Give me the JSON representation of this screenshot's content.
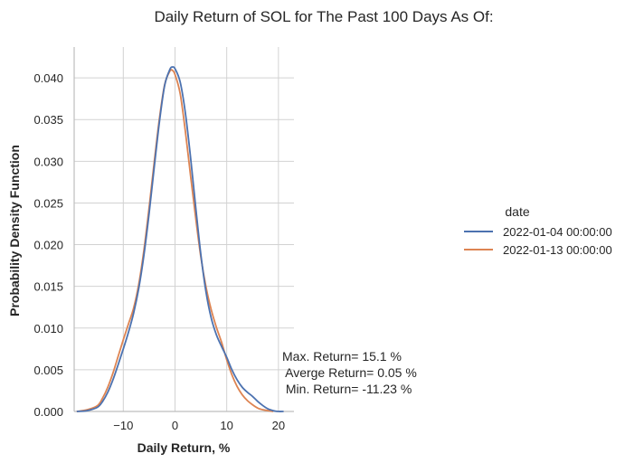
{
  "chart_data": {
    "type": "line",
    "title": "Daily Return of SOL for The Past 100 Days As Of:",
    "xlabel": "Daily Return, %",
    "ylabel": "Probability Density Function",
    "xlim": [
      -19.5,
      23
    ],
    "ylim": [
      0,
      0.0437
    ],
    "x_ticks": [
      -10,
      0,
      10,
      20
    ],
    "x_tick_labels": [
      "−10",
      "0",
      "10",
      "20"
    ],
    "y_ticks": [
      0.0,
      0.005,
      0.01,
      0.015,
      0.02,
      0.025,
      0.03,
      0.035,
      0.04
    ],
    "y_tick_labels": [
      "0.000",
      "0.005",
      "0.010",
      "0.015",
      "0.020",
      "0.025",
      "0.030",
      "0.035",
      "0.040"
    ],
    "grid": true,
    "legend": {
      "title": "date",
      "placement": "right"
    },
    "series": [
      {
        "name": "2022-01-04 00:00:00",
        "color": "#4c72b0",
        "x": [
          -19,
          -17,
          -15,
          -14,
          -13,
          -12,
          -11,
          -10,
          -9,
          -8,
          -7,
          -6,
          -5,
          -4,
          -3,
          -2,
          -1,
          -0.5,
          0,
          1,
          2,
          3,
          4,
          5,
          6,
          7,
          8,
          9,
          10,
          11,
          12,
          13,
          14,
          15,
          16,
          17,
          18,
          19,
          20,
          21
        ],
        "y": [
          0.0,
          0.0001,
          0.0005,
          0.0012,
          0.0023,
          0.0038,
          0.0056,
          0.0075,
          0.0095,
          0.0118,
          0.0148,
          0.0188,
          0.0238,
          0.0294,
          0.0348,
          0.0391,
          0.041,
          0.0413,
          0.0411,
          0.0395,
          0.0358,
          0.0305,
          0.0245,
          0.0188,
          0.0143,
          0.0112,
          0.0092,
          0.0078,
          0.0065,
          0.005,
          0.0038,
          0.0029,
          0.0023,
          0.0018,
          0.0012,
          0.0007,
          0.0003,
          0.0001,
          0.0,
          0.0
        ]
      },
      {
        "name": "2022-01-13 00:00:00",
        "color": "#dd8452",
        "x": [
          -19,
          -17,
          -15,
          -14,
          -13,
          -12,
          -11,
          -10,
          -9,
          -8,
          -7,
          -6,
          -5,
          -4,
          -3,
          -2,
          -1,
          -0.5,
          0,
          1,
          2,
          3,
          4,
          5,
          6,
          7,
          8,
          9,
          10,
          11,
          12,
          13,
          14,
          15,
          16,
          17,
          18,
          19
        ],
        "y": [
          0.0,
          0.0002,
          0.0007,
          0.0016,
          0.0029,
          0.0046,
          0.0066,
          0.0086,
          0.0105,
          0.0124,
          0.0153,
          0.0194,
          0.0245,
          0.03,
          0.0352,
          0.0392,
          0.0408,
          0.0409,
          0.0404,
          0.0381,
          0.0336,
          0.0283,
          0.0232,
          0.0185,
          0.0149,
          0.0122,
          0.0101,
          0.0083,
          0.0062,
          0.0044,
          0.003,
          0.002,
          0.0013,
          0.0008,
          0.0004,
          0.0002,
          0.0001,
          0.0
        ]
      }
    ],
    "annotations": [
      "Max. Return= 15.1 %",
      " Averge Return= 0.05 %",
      " Min. Return= -11.23 %"
    ]
  }
}
